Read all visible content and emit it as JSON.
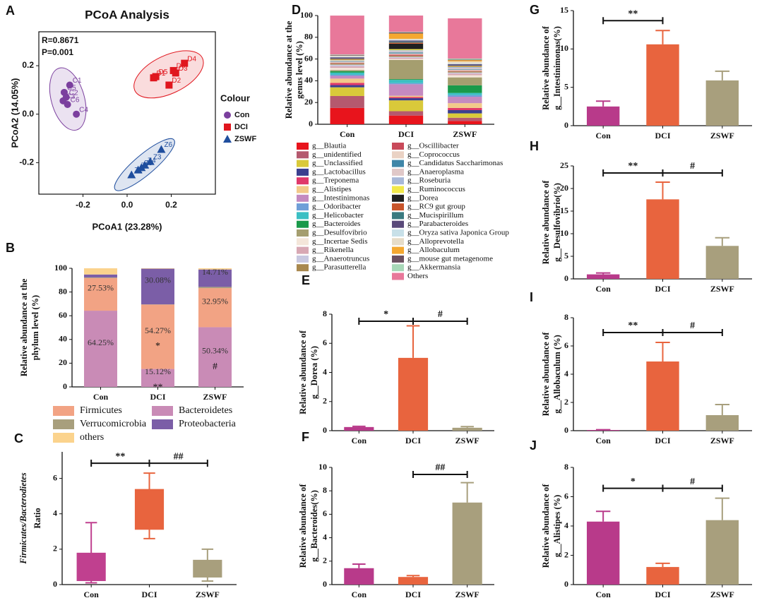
{
  "chart_data": [
    {
      "panel": "A",
      "type": "scatter",
      "title": "PCoA Analysis",
      "annotations": [
        "R=0.8671",
        "P=0.001"
      ],
      "xlabel": "PCoA1 (23.28%)",
      "ylabel": [
        "PCoA2 (14.05%)"
      ],
      "legend_title": "Colour",
      "xlim": [
        -0.4,
        0.4
      ],
      "ylim": [
        -0.33,
        0.34
      ],
      "xticks": [
        -0.2,
        {
          "value": 0,
          "label": "0.0"
        },
        0.2
      ],
      "yticks": [
        -0.2,
        {
          "value": 0,
          "label": "0.0"
        },
        0.2
      ],
      "series": [
        {
          "name": "Con",
          "color": "#7b3f9e",
          "marker": "circle",
          "labels": [
            "C1",
            "C5",
            "C2",
            "C3",
            "C6",
            "C4"
          ],
          "x": [
            -0.26,
            -0.285,
            -0.276,
            -0.29,
            -0.27,
            -0.23
          ],
          "values": [
            0.12,
            0.09,
            0.07,
            0.055,
            0.04,
            0.0
          ]
        },
        {
          "name": "DCI",
          "color": "#e0161e",
          "marker": "square",
          "labels": [
            "D5",
            "D6",
            "D3",
            "D4",
            "D2",
            "D1"
          ],
          "x": [
            0.13,
            0.21,
            0.22,
            0.26,
            0.19,
            0.12
          ],
          "values": [
            0.155,
            0.18,
            0.17,
            0.21,
            0.12,
            0.15
          ]
        },
        {
          "name": "ZSWF",
          "color": "#1f4e9e",
          "marker": "triangle",
          "labels": [
            "Z6",
            "Z3",
            "Z4",
            "Z5",
            "Z1",
            "Z2"
          ],
          "x": [
            0.155,
            0.105,
            0.08,
            0.065,
            0.05,
            0.02
          ],
          "values": [
            -0.145,
            -0.195,
            -0.21,
            -0.22,
            -0.23,
            -0.25
          ]
        }
      ]
    },
    {
      "panel": "B",
      "type": "stacked_bar",
      "ylabel": [
        "Relative abundance at the",
        "phylum level (%)"
      ],
      "categories": [
        "Con",
        "DCI",
        "ZSWF"
      ],
      "ylim": [
        0,
        100
      ],
      "yticks": [
        0,
        20,
        40,
        60,
        80,
        100
      ],
      "series": [
        {
          "name": "Bacteroidetes",
          "color": "#c98bb6",
          "values": [
            64.25,
            15.12,
            50.34
          ],
          "value_labels": [
            "64.25%",
            "15.12%",
            "50.34%"
          ]
        },
        {
          "name": "Firmicutes",
          "color": "#f2a384",
          "values": [
            27.53,
            54.27,
            32.95
          ],
          "value_labels": [
            "27.53%",
            "54.27%",
            "32.95%"
          ]
        },
        {
          "name": "Verrucomicrobia",
          "color": "#a89f7d",
          "values": [
            0.5,
            0.2,
            1.0
          ]
        },
        {
          "name": "Proteobacteria",
          "color": "#7b5ea7",
          "values": [
            2.5,
            30.08,
            14.71
          ],
          "value_labels": [
            null,
            "30.08%",
            "14.71%"
          ]
        },
        {
          "name": "others",
          "color": "#fbd38d",
          "values": [
            5.22,
            0.33,
            1.0
          ]
        }
      ],
      "annotations": [
        {
          "text": "*",
          "category": "DCI",
          "series": "Firmicutes"
        },
        {
          "text": "**",
          "category": "DCI",
          "series": "Bacteroidetes"
        },
        {
          "text": "#",
          "category": "ZSWF",
          "series": "Bacteroidetes"
        }
      ]
    },
    {
      "panel": "C",
      "type": "box",
      "ylabel": [
        "Firmicutes/Bacterodietes",
        "Ratio"
      ],
      "categories": [
        "Con",
        "DCI",
        "ZSWF"
      ],
      "colors": [
        "#c0408f",
        "#e8643e",
        "#a89f7d"
      ],
      "ylim": [
        0,
        7.5
      ],
      "yticks": [
        0,
        2,
        4,
        6
      ],
      "min": [
        0.1,
        2.6,
        0.2
      ],
      "q1": [
        0.2,
        3.1,
        0.4
      ],
      "q3": [
        1.8,
        5.4,
        1.4
      ],
      "max": [
        3.5,
        6.3,
        2.0
      ],
      "brackets": [
        {
          "label": "**",
          "categories": [
            "Con",
            "DCI"
          ]
        },
        {
          "label": "##",
          "categories": [
            "DCI",
            "ZSWF"
          ]
        }
      ]
    },
    {
      "panel": "D",
      "type": "stacked_bar",
      "ylabel": [
        "Relative abundance at the",
        "genus level (%)"
      ],
      "categories": [
        "Con",
        "DCI",
        "ZSWF"
      ],
      "ylim": [
        0,
        100
      ],
      "yticks": [
        0,
        20,
        40,
        60,
        80,
        100
      ],
      "series": [
        {
          "name": "g__Blautia",
          "color": "#e8141c",
          "values": [
            15,
            8,
            3
          ]
        },
        {
          "name": "g__unidentified",
          "color": "#b5596e",
          "values": [
            11,
            4,
            3
          ]
        },
        {
          "name": "g__Unclassified",
          "color": "#d9c93a",
          "values": [
            8,
            10,
            4
          ]
        },
        {
          "name": "g__Lactobacillus",
          "color": "#3b3f8f",
          "values": [
            2,
            2,
            3
          ]
        },
        {
          "name": "g__Treponema",
          "color": "#e0386a",
          "values": [
            2,
            1,
            2
          ]
        },
        {
          "name": "g__Alistipes",
          "color": "#f2c98a",
          "values": [
            4,
            1.2,
            4.4
          ]
        },
        {
          "name": "g__Intestinimonas",
          "color": "#c48ac0",
          "values": [
            2.5,
            10.6,
            5.9
          ]
        },
        {
          "name": "g__Odoribacter",
          "color": "#6f9fd8",
          "values": [
            1,
            1,
            1.5
          ]
        },
        {
          "name": "g__Helicobacter",
          "color": "#3bbfc4",
          "values": [
            2,
            3,
            2
          ]
        },
        {
          "name": "g__Bacteroides",
          "color": "#1a9a4a",
          "values": [
            1.4,
            0.7,
            7
          ]
        },
        {
          "name": "g__Desulfovibrio",
          "color": "#a59e6f",
          "values": [
            1,
            17.6,
            7.3
          ]
        },
        {
          "name": "g__Incertae Sedis",
          "color": "#f4e6da",
          "values": [
            2,
            1,
            2
          ]
        },
        {
          "name": "g__Rikenella",
          "color": "#d8a8b4",
          "values": [
            1.5,
            1,
            1.5
          ]
        },
        {
          "name": "g__Anaerotruncus",
          "color": "#c8c8e0",
          "values": [
            1.5,
            1,
            1
          ]
        },
        {
          "name": "g__Parasutterella",
          "color": "#a8884e",
          "values": [
            1,
            1,
            1
          ]
        },
        {
          "name": "g__Oscillibacter",
          "color": "#c94a5a",
          "values": [
            0.5,
            1,
            0.5
          ]
        },
        {
          "name": "g__Coprococcus",
          "color": "#ead2c4",
          "values": [
            1,
            1,
            1
          ]
        },
        {
          "name": "g__Candidatus Saccharimonas",
          "color": "#3f86a8",
          "values": [
            0.5,
            1,
            0.5
          ]
        },
        {
          "name": "g__Anaeroplasma",
          "color": "#e0c8c8",
          "values": [
            0.5,
            1,
            1
          ]
        },
        {
          "name": "g__Roseburia",
          "color": "#a8b8d8",
          "values": [
            0.5,
            1,
            1
          ]
        },
        {
          "name": "g__Ruminococcus",
          "color": "#f2e84a",
          "values": [
            0.5,
            1,
            0.5
          ]
        },
        {
          "name": "g__Dorea",
          "color": "#202020",
          "values": [
            0.2,
            5,
            0.2
          ]
        },
        {
          "name": "g__RC9 gut group",
          "color": "#c8542a",
          "values": [
            0.5,
            1,
            0.5
          ]
        },
        {
          "name": "g__Mucispirillum",
          "color": "#3a7a80",
          "values": [
            0.5,
            1,
            0.5
          ]
        },
        {
          "name": "g__Parabacteroides",
          "color": "#5a4a7a",
          "values": [
            1,
            1,
            1
          ]
        },
        {
          "name": "g__Oryza sativa Japonica Group",
          "color": "#c8e0e8",
          "values": [
            0.5,
            0.5,
            0.5
          ]
        },
        {
          "name": "g__Alloprevotella",
          "color": "#e6dcc8",
          "values": [
            1,
            1,
            2
          ]
        },
        {
          "name": "g__Allobaculum",
          "color": "#f4a830",
          "values": [
            0.05,
            4.9,
            1.1
          ]
        },
        {
          "name": "g__mouse gut metagenome",
          "color": "#6a5060",
          "values": [
            0.5,
            1,
            0.5
          ]
        },
        {
          "name": "g__Akkermansia",
          "color": "#a8d8b8",
          "values": [
            0.5,
            0.5,
            1
          ]
        },
        {
          "name": "Others",
          "color": "#e8789a",
          "values": [
            35.8,
            15,
            37
          ]
        }
      ]
    },
    {
      "panel": "E",
      "type": "bar",
      "ylabel": [
        "Relative abundance of",
        "g__Dorea (%)"
      ],
      "categories": [
        "Con",
        "DCI",
        "ZSWF"
      ],
      "colors": [
        "#b83a8a",
        "#e8643e",
        "#a89f7d"
      ],
      "values": [
        0.25,
        5.0,
        0.2
      ],
      "errors": [
        0.05,
        2.2,
        0.08
      ],
      "ylim": [
        0,
        8
      ],
      "yticks": [
        0,
        2,
        4,
        6,
        8
      ],
      "brackets": [
        {
          "label": "*",
          "categories": [
            "Con",
            "DCI"
          ]
        },
        {
          "label": "#",
          "categories": [
            "DCI",
            "ZSWF"
          ]
        }
      ]
    },
    {
      "panel": "F",
      "type": "bar",
      "ylabel": [
        "Relative abundance of",
        "g__Bacteroides(%)"
      ],
      "categories": [
        "Con",
        "DCI",
        "ZSWF"
      ],
      "colors": [
        "#b83a8a",
        "#e8643e",
        "#a89f7d"
      ],
      "values": [
        1.4,
        0.65,
        7.0
      ],
      "errors": [
        0.35,
        0.12,
        1.7
      ],
      "ylim": [
        0,
        10
      ],
      "yticks": [
        0,
        2,
        4,
        6,
        8,
        10
      ],
      "brackets": [
        {
          "label": "##",
          "categories": [
            "DCI",
            "ZSWF"
          ]
        }
      ]
    },
    {
      "panel": "G",
      "type": "bar",
      "ylabel": [
        "Relative abundance of",
        "g__Intestinimonas(%)"
      ],
      "categories": [
        "Con",
        "DCI",
        "ZSWF"
      ],
      "colors": [
        "#b83a8a",
        "#e8643e",
        "#a89f7d"
      ],
      "values": [
        2.5,
        10.6,
        5.9
      ],
      "errors": [
        0.7,
        1.8,
        1.2
      ],
      "ylim": [
        0,
        15
      ],
      "yticks": [
        0,
        5,
        10,
        15
      ],
      "brackets": [
        {
          "label": "**",
          "categories": [
            "Con",
            "DCI"
          ]
        }
      ]
    },
    {
      "panel": "H",
      "type": "bar",
      "ylabel": [
        "Relative abundance of",
        "g__Desulfovibrio(%)"
      ],
      "categories": [
        "Con",
        "DCI",
        "ZSWF"
      ],
      "colors": [
        "#b83a8a",
        "#e8643e",
        "#a89f7d"
      ],
      "values": [
        1.0,
        17.6,
        7.3
      ],
      "errors": [
        0.3,
        3.8,
        1.8
      ],
      "ylim": [
        0,
        25
      ],
      "yticks": [
        0,
        5,
        10,
        15,
        20,
        25
      ],
      "brackets": [
        {
          "label": "**",
          "categories": [
            "Con",
            "DCI"
          ]
        },
        {
          "label": "#",
          "categories": [
            "DCI",
            "ZSWF"
          ]
        }
      ]
    },
    {
      "panel": "I",
      "type": "bar",
      "ylabel": [
        "Relative abundance of",
        "g__Allobaculum (%)"
      ],
      "categories": [
        "Con",
        "DCI",
        "ZSWF"
      ],
      "colors": [
        "#b83a8a",
        "#e8643e",
        "#a89f7d"
      ],
      "values": [
        0.05,
        4.9,
        1.1
      ],
      "errors": [
        0.02,
        1.35,
        0.75
      ],
      "ylim": [
        0,
        8
      ],
      "yticks": [
        0,
        2,
        4,
        6,
        8
      ],
      "brackets": [
        {
          "label": "**",
          "categories": [
            "Con",
            "DCI"
          ]
        },
        {
          "label": "#",
          "categories": [
            "DCI",
            "ZSWF"
          ]
        }
      ]
    },
    {
      "panel": "J",
      "type": "bar",
      "ylabel": [
        "Relative abundance of",
        "g__Alistipes (%)"
      ],
      "categories": [
        "Con",
        "DCI",
        "ZSWF"
      ],
      "colors": [
        "#b83a8a",
        "#e8643e",
        "#a89f7d"
      ],
      "values": [
        4.3,
        1.2,
        4.4
      ],
      "errors": [
        0.7,
        0.25,
        1.5
      ],
      "ylim": [
        0,
        8
      ],
      "yticks": [
        0,
        2,
        4,
        6,
        8
      ],
      "brackets": [
        {
          "label": "*",
          "categories": [
            "Con",
            "DCI"
          ]
        },
        {
          "label": "#",
          "categories": [
            "DCI",
            "ZSWF"
          ]
        }
      ]
    }
  ]
}
